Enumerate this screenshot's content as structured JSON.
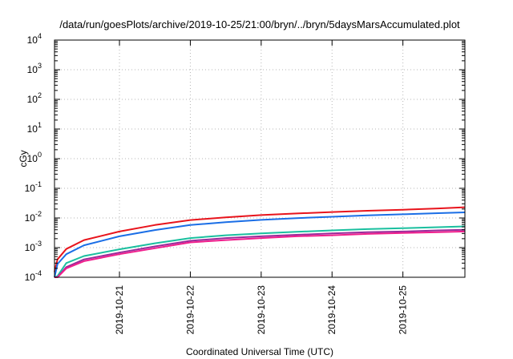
{
  "chart_data": {
    "type": "line",
    "title": "/data/run/goesPlots/archive/2019-10-25/21:00/bryn/../bryn/5daysMarsAccumulated.plot",
    "xlabel": "Coordinated Universal Time (UTC)",
    "ylabel": "cGy",
    "yscale": "log",
    "ylim": [
      0.0001,
      10000
    ],
    "xlim": [
      "2019-10-20T02:00",
      "2019-10-25T21:00"
    ],
    "grid": true,
    "x_ticks": [
      "2019-10-21",
      "2019-10-22",
      "2019-10-23",
      "2019-10-24",
      "2019-10-25"
    ],
    "y_ticks": [
      {
        "base": "10",
        "exp": "-4"
      },
      {
        "base": "10",
        "exp": "-3"
      },
      {
        "base": "10",
        "exp": "-2"
      },
      {
        "base": "10",
        "exp": "-1"
      },
      {
        "base": "10",
        "exp": "0"
      },
      {
        "base": "10",
        "exp": "1"
      },
      {
        "base": "10",
        "exp": "2"
      },
      {
        "base": "10",
        "exp": "3"
      },
      {
        "base": "10",
        "exp": "4"
      }
    ],
    "x": [
      "2019-10-20T02:00",
      "2019-10-20T03:00",
      "2019-10-20T06:00",
      "2019-10-20T12:00",
      "2019-10-21T00:00",
      "2019-10-21T12:00",
      "2019-10-22T00:00",
      "2019-10-22T12:00",
      "2019-10-23T00:00",
      "2019-10-23T12:00",
      "2019-10-24T00:00",
      "2019-10-24T12:00",
      "2019-10-25T00:00",
      "2019-10-25T12:00",
      "2019-10-25T21:00"
    ],
    "series": [
      {
        "color": "#e8141c",
        "values": [
          0.00015,
          0.0004,
          0.0009,
          0.0018,
          0.0035,
          0.0058,
          0.0085,
          0.0105,
          0.0125,
          0.0142,
          0.0158,
          0.0175,
          0.019,
          0.021,
          0.023
        ]
      },
      {
        "color": "#1a6ee6",
        "values": [
          0.0001,
          0.00028,
          0.0006,
          0.0012,
          0.0024,
          0.0039,
          0.0058,
          0.0072,
          0.0086,
          0.0099,
          0.011,
          0.0122,
          0.0133,
          0.0145,
          0.0155
        ]
      },
      {
        "color": "#1abf9f",
        "values": [
          8e-05,
          0.00011,
          0.0003,
          0.00052,
          0.00088,
          0.0014,
          0.0021,
          0.0026,
          0.003,
          0.0034,
          0.0038,
          0.0042,
          0.0045,
          0.0049,
          0.0052
        ]
      },
      {
        "color": "#9a2a9a",
        "values": [
          7e-05,
          9e-05,
          0.00022,
          0.0004,
          0.00068,
          0.0011,
          0.0017,
          0.0021,
          0.0024,
          0.0027,
          0.003,
          0.0033,
          0.0035,
          0.0038,
          0.004
        ]
      },
      {
        "color": "#f01e8c",
        "values": [
          6e-05,
          8e-05,
          0.0002,
          0.00035,
          0.0006,
          0.00095,
          0.0015,
          0.0018,
          0.0021,
          0.0024,
          0.0026,
          0.0029,
          0.0031,
          0.0033,
          0.0035
        ]
      }
    ]
  }
}
